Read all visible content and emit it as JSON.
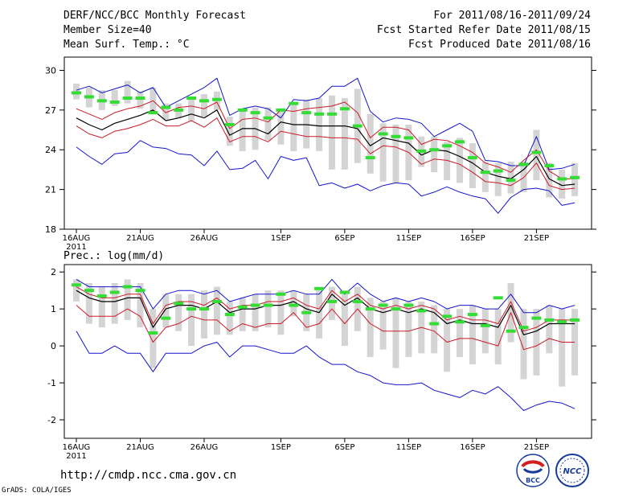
{
  "header": {
    "title": "DERF/NCC/BCC Monthly Forecast",
    "member_size": "Member Size=40",
    "variable": "Mean Surf. Temp.: °C",
    "period": "For 2011/08/16-2011/09/24",
    "started": "Fcst Started Refer Date 2011/08/15",
    "produced": "Fcst Produced Date 2011/08/16"
  },
  "footer": {
    "url": "http://cmdp.ncc.cma.gov.cn",
    "grads": "GrADS: COLA/IGES",
    "logo1_text": "BCC",
    "logo2_text": "NCC"
  },
  "colors": {
    "bar": "#d4d4d4",
    "mean": "#000000",
    "spread": "#cc1a2a",
    "envelope": "#1414cc",
    "obs": "#33dd33"
  },
  "chart_data": [
    {
      "type": "line",
      "title": "Mean Surf. Temp.: °C",
      "x_tick_labels": [
        "16AUG",
        "21AUG",
        "26AUG",
        "1SEP",
        "6SEP",
        "11SEP",
        "16SEP",
        "21SEP"
      ],
      "x_tick_days": [
        0,
        5,
        10,
        16,
        21,
        26,
        31,
        36
      ],
      "x_year_label": "2011",
      "ylim": [
        18,
        31
      ],
      "yticks": [
        18,
        21,
        24,
        27,
        30
      ],
      "series": [
        {
          "name": "ensemble mean",
          "values": [
            26.4,
            25.9,
            25.5,
            26.0,
            26.3,
            26.6,
            27.0,
            26.2,
            26.4,
            26.7,
            26.4,
            27.0,
            25.1,
            25.6,
            25.6,
            25.2,
            26.1,
            25.9,
            25.9,
            25.8,
            25.8,
            25.8,
            25.6,
            24.3,
            24.9,
            24.7,
            24.5,
            23.6,
            24.0,
            23.9,
            23.5,
            23.0,
            22.3,
            22.0,
            21.8,
            22.5,
            23.5,
            21.8,
            21.3,
            21.4
          ]
        },
        {
          "name": "spread upper",
          "values": [
            27.1,
            26.7,
            26.3,
            26.8,
            27.1,
            27.3,
            27.7,
            26.8,
            27.2,
            27.3,
            27.1,
            27.6,
            25.6,
            26.3,
            26.4,
            26.1,
            27.0,
            26.9,
            27.1,
            27.2,
            27.3,
            27.6,
            26.8,
            24.9,
            25.7,
            25.7,
            25.5,
            24.4,
            24.8,
            24.7,
            24.3,
            23.8,
            23.0,
            22.7,
            22.3,
            23.2,
            24.0,
            22.4,
            21.8,
            21.8
          ]
        },
        {
          "name": "spread lower",
          "values": [
            25.8,
            25.2,
            24.9,
            25.4,
            25.6,
            25.9,
            26.3,
            25.8,
            25.8,
            26.2,
            25.7,
            26.4,
            24.6,
            25.0,
            25.0,
            24.6,
            25.4,
            25.2,
            25.0,
            25.0,
            24.9,
            24.9,
            24.8,
            23.7,
            24.3,
            24.2,
            23.8,
            22.9,
            23.3,
            23.2,
            22.9,
            22.3,
            21.6,
            21.5,
            21.3,
            21.9,
            23.0,
            21.3,
            21.0,
            21.1
          ]
        },
        {
          "name": "ensemble max",
          "values": [
            28.5,
            28.8,
            28.3,
            28.6,
            28.9,
            28.3,
            28.7,
            27.2,
            27.7,
            28.2,
            28.7,
            29.4,
            26.6,
            27.1,
            27.3,
            27.1,
            26.4,
            27.8,
            27.7,
            27.9,
            28.8,
            28.8,
            29.4,
            26.9,
            26.1,
            26.4,
            26.3,
            26.0,
            25.0,
            25.5,
            26.0,
            25.4,
            23.2,
            23.1,
            22.8,
            22.8,
            25.0,
            22.5,
            22.6,
            22.9
          ]
        },
        {
          "name": "ensemble min",
          "values": [
            24.2,
            23.5,
            22.9,
            23.7,
            23.8,
            24.7,
            24.2,
            24.1,
            23.7,
            23.6,
            22.8,
            23.9,
            22.5,
            22.6,
            23.2,
            21.8,
            23.5,
            23.2,
            23.4,
            21.3,
            21.5,
            21.1,
            21.4,
            20.9,
            21.3,
            21.5,
            21.4,
            20.5,
            20.8,
            21.2,
            20.8,
            20.5,
            20.3,
            19.2,
            20.4,
            21.0,
            21.1,
            20.9,
            19.8,
            20.0
          ]
        },
        {
          "name": "bar top",
          "values": [
            29.0,
            28.7,
            28.5,
            28.5,
            29.2,
            28.4,
            28.7,
            27.5,
            27.5,
            28.0,
            28.2,
            28.4,
            26.5,
            27.1,
            27.2,
            27.2,
            26.9,
            27.6,
            27.8,
            27.9,
            28.1,
            27.9,
            28.6,
            26.7,
            26.0,
            25.9,
            25.9,
            25.0,
            25.0,
            24.6,
            24.9,
            24.5,
            23.1,
            23.0,
            23.1,
            23.1,
            25.5,
            23.0,
            22.5,
            23.0
          ]
        },
        {
          "name": "bar bottom",
          "values": [
            27.8,
            27.2,
            27.0,
            27.3,
            27.5,
            27.1,
            26.9,
            26.3,
            26.4,
            26.2,
            26.5,
            27.0,
            24.3,
            23.9,
            24.0,
            24.7,
            24.4,
            23.9,
            24.1,
            23.9,
            22.5,
            22.5,
            23.0,
            22.2,
            21.6,
            21.5,
            21.7,
            22.7,
            22.3,
            21.7,
            21.5,
            21.1,
            20.8,
            20.5,
            20.7,
            20.8,
            21.7,
            20.4,
            20.3,
            20.5
          ]
        },
        {
          "name": "observation",
          "values": [
            28.3,
            28.0,
            27.7,
            27.6,
            27.9,
            27.9,
            26.8,
            27.2,
            27.0,
            27.9,
            27.7,
            27.8,
            25.9,
            27.0,
            26.8,
            26.4,
            27.0,
            27.5,
            26.8,
            26.7,
            26.7,
            27.1,
            25.8,
            23.4,
            25.2,
            25.0,
            24.9,
            23.9,
            24.0,
            24.3,
            24.6,
            23.4,
            22.3,
            22.4,
            21.7,
            22.9,
            23.8,
            22.8,
            21.8,
            21.9
          ]
        }
      ]
    },
    {
      "type": "line",
      "title": "Prec.: log(mm/d)",
      "x_tick_labels": [
        "16AUG",
        "21AUG",
        "26AUG",
        "1SEP",
        "6SEP",
        "11SEP",
        "16SEP",
        "21SEP"
      ],
      "x_tick_days": [
        0,
        5,
        10,
        16,
        21,
        26,
        31,
        36
      ],
      "x_year_label": "2011",
      "ylim": [
        -2.5,
        2.2
      ],
      "yticks": [
        -2,
        -1,
        0,
        1,
        2
      ],
      "series": [
        {
          "name": "ensemble mean",
          "values": [
            1.5,
            1.3,
            1.2,
            1.2,
            1.3,
            1.3,
            0.5,
            1.0,
            1.1,
            1.1,
            1.0,
            1.2,
            0.9,
            1.0,
            1.0,
            1.1,
            1.1,
            1.2,
            1.0,
            0.9,
            1.4,
            1.1,
            1.3,
            1.0,
            0.9,
            1.0,
            0.9,
            1.0,
            0.9,
            0.6,
            0.7,
            0.6,
            0.6,
            0.5,
            1.1,
            0.3,
            0.4,
            0.6,
            0.6,
            0.6
          ]
        },
        {
          "name": "spread upper",
          "values": [
            1.6,
            1.4,
            1.3,
            1.3,
            1.4,
            1.4,
            0.6,
            1.1,
            1.2,
            1.2,
            1.1,
            1.3,
            1.0,
            1.1,
            1.1,
            1.2,
            1.2,
            1.3,
            1.1,
            1.0,
            1.5,
            1.2,
            1.4,
            1.1,
            1.0,
            1.1,
            1.0,
            1.1,
            1.0,
            0.7,
            0.8,
            0.7,
            0.7,
            0.6,
            1.2,
            0.4,
            0.5,
            0.7,
            0.7,
            0.7
          ]
        },
        {
          "name": "spread lower",
          "values": [
            1.1,
            0.8,
            0.8,
            0.8,
            1.0,
            0.8,
            0.1,
            0.5,
            0.6,
            0.8,
            0.7,
            0.7,
            0.4,
            0.6,
            0.5,
            0.6,
            0.6,
            0.9,
            0.5,
            0.6,
            1.0,
            0.6,
            1.0,
            0.6,
            0.4,
            0.4,
            0.4,
            0.5,
            0.4,
            0.1,
            0.2,
            0.2,
            0.1,
            0.0,
            0.9,
            -0.1,
            0.0,
            0.2,
            0.1,
            0.1
          ]
        },
        {
          "name": "ensemble max",
          "values": [
            1.8,
            1.6,
            1.6,
            1.6,
            1.6,
            1.6,
            1.0,
            1.4,
            1.5,
            1.5,
            1.4,
            1.5,
            1.2,
            1.3,
            1.4,
            1.4,
            1.4,
            1.5,
            1.4,
            1.4,
            1.8,
            1.4,
            1.7,
            1.4,
            1.2,
            1.3,
            1.2,
            1.3,
            1.2,
            1.0,
            1.1,
            1.1,
            1.0,
            1.0,
            1.4,
            0.9,
            0.9,
            1.1,
            1.0,
            1.1
          ]
        },
        {
          "name": "ensemble min",
          "values": [
            0.4,
            -0.2,
            -0.2,
            0.0,
            -0.2,
            -0.2,
            -0.7,
            -0.2,
            -0.2,
            -0.2,
            0.0,
            0.1,
            -0.3,
            0.0,
            0.0,
            -0.1,
            -0.2,
            -0.2,
            0.0,
            -0.3,
            -0.5,
            -0.5,
            -0.7,
            -0.8,
            -1.0,
            -1.05,
            -1.05,
            -1.0,
            -1.2,
            -1.3,
            -1.4,
            -1.2,
            -1.3,
            -1.1,
            -1.4,
            -1.75,
            -1.6,
            -1.5,
            -1.55,
            -1.7
          ]
        },
        {
          "name": "bar top",
          "values": [
            1.8,
            1.7,
            1.6,
            1.7,
            1.8,
            1.7,
            1.0,
            1.4,
            1.4,
            1.4,
            1.5,
            1.6,
            1.2,
            1.3,
            1.4,
            1.5,
            1.5,
            1.5,
            1.4,
            1.5,
            1.6,
            1.4,
            1.6,
            1.3,
            1.2,
            1.3,
            1.2,
            1.2,
            1.1,
            1.0,
            1.0,
            1.1,
            1.0,
            1.0,
            1.7,
            1.0,
            1.0,
            1.1,
            1.0,
            1.0
          ]
        },
        {
          "name": "bar bottom",
          "values": [
            1.2,
            0.6,
            0.5,
            0.6,
            0.7,
            0.5,
            -0.6,
            0.5,
            0.4,
            0.0,
            0.2,
            0.3,
            0.3,
            0.4,
            0.4,
            0.5,
            0.3,
            0.8,
            0.4,
            0.2,
            0.7,
            0.0,
            0.4,
            -0.3,
            -0.1,
            -0.6,
            -0.3,
            -0.2,
            -0.2,
            -0.7,
            -0.3,
            -0.5,
            -0.2,
            -0.5,
            0.1,
            -0.9,
            -0.8,
            -0.2,
            -1.1,
            -0.8
          ]
        },
        {
          "name": "observation",
          "values": [
            1.65,
            1.5,
            1.35,
            1.45,
            1.6,
            1.5,
            0.35,
            0.75,
            1.15,
            1.0,
            1.0,
            1.2,
            0.85,
            1.05,
            1.1,
            1.1,
            1.4,
            1.1,
            0.9,
            1.55,
            1.2,
            1.45,
            1.2,
            1.0,
            1.1,
            1.0,
            1.1,
            0.95,
            0.6,
            0.8,
            0.65,
            0.85,
            0.55,
            1.3,
            0.4,
            0.5,
            0.75,
            0.7,
            0.65,
            0.7
          ]
        }
      ]
    }
  ]
}
